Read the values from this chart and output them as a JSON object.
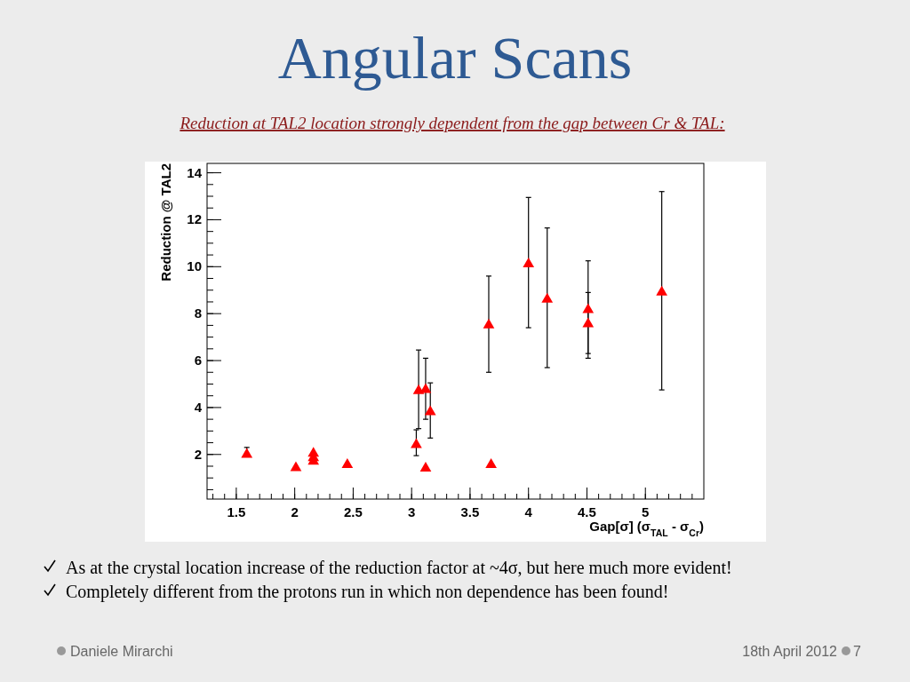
{
  "chart_data": {
    "type": "scatter",
    "title": "Angular Scans",
    "subtitle": "Reduction at TAL2 location strongly dependent from the gap between Cr & TAL:",
    "xlabel": "Gap[σ] (σ$_{TAL}$ - σ$_{Cr}$)",
    "ylabel": "Reduction @ TAL2",
    "x": [
      1.59,
      2.01,
      2.16,
      2.16,
      2.16,
      2.45,
      3.04,
      3.06,
      3.12,
      3.16,
      3.12,
      3.66,
      3.68,
      4.0,
      4.16,
      4.51,
      4.51,
      5.14
    ],
    "series": [
      {
        "color": "#ff0000",
        "values": [
          2.04,
          1.47,
          2.08,
          1.89,
          1.74,
          1.6,
          2.45,
          4.75,
          4.8,
          3.85,
          1.45,
          7.55,
          1.6,
          10.15,
          8.65,
          8.2,
          7.6,
          8.95
        ],
        "errors": [
          [
            1.9,
            2.3
          ],
          null,
          null,
          null,
          null,
          null,
          [
            1.95,
            3.05
          ],
          [
            3.1,
            6.45
          ],
          [
            3.5,
            6.1
          ],
          [
            2.7,
            5.05
          ],
          null,
          [
            5.5,
            9.6
          ],
          null,
          [
            7.4,
            12.95
          ],
          [
            5.7,
            11.65
          ],
          [
            6.3,
            8.9
          ],
          [
            6.1,
            10.25
          ],
          [
            4.75,
            13.2
          ]
        ]
      }
    ],
    "marker": "triangle",
    "xlim": [
      1.25,
      5.5
    ],
    "ylim": [
      0.1,
      14.4
    ],
    "xticks": [
      1.5,
      2,
      2.5,
      3,
      3.5,
      4,
      4.5,
      5
    ],
    "yticks": [
      2,
      4,
      6,
      8,
      10,
      12,
      14
    ],
    "annotations": [
      "As at the crystal location increase of the reduction factor at ~4σ, but here much more evident!",
      "Completely different from the protons run in which non dependence has been found!",
      "Daniele Mirarchi",
      "18th April 2012",
      "7"
    ]
  }
}
